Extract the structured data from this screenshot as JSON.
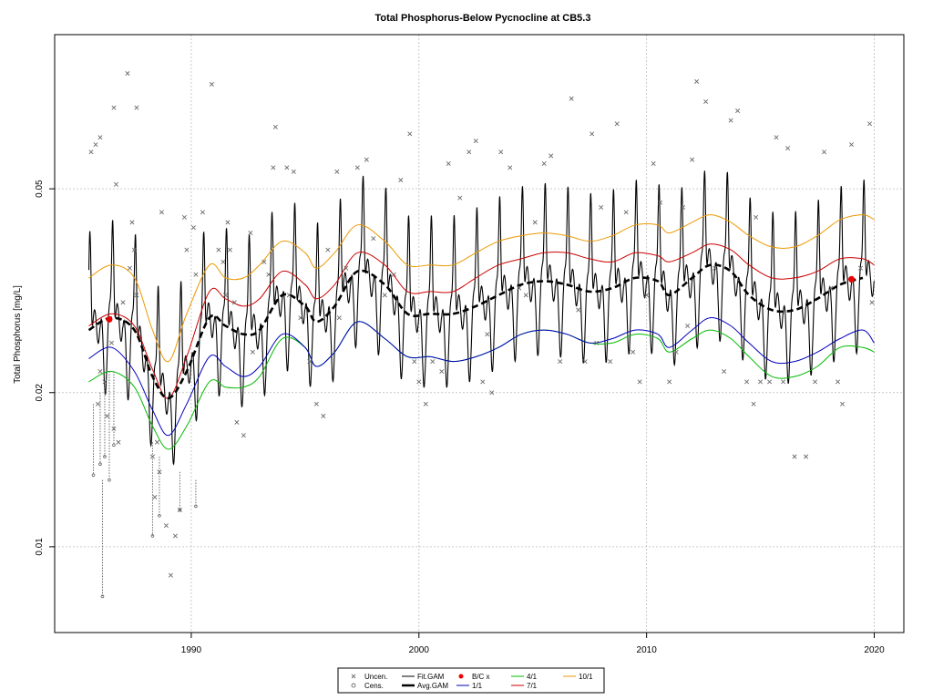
{
  "chart_data": {
    "type": "line",
    "title": "Total Phosphorus-Below Pycnocline at CB5.3",
    "xlabel": "",
    "ylabel": "Total Phosphorus [mg/L]",
    "x_scale": "linear (year)",
    "y_scale": "log",
    "xlim": [
      1984.0,
      2021.3
    ],
    "ylim": [
      0.0068,
      0.1
    ],
    "x_ticks": [
      1990,
      2000,
      2010,
      2020
    ],
    "y_ticks": [
      0.01,
      0.02,
      0.05
    ],
    "y_tick_labels": [
      "0.01",
      "0.02",
      "0.05"
    ],
    "grid": true,
    "legend_position": "bottom-center",
    "legend": [
      {
        "label": "Uncen.",
        "marker": "x"
      },
      {
        "label": "Cens.",
        "marker": "o"
      },
      {
        "label": "Fit.GAM",
        "line": "solid-thin"
      },
      {
        "label": "Avg.GAM",
        "line": "dashed-thick"
      },
      {
        "label": "B/C x",
        "marker": "dot"
      },
      {
        "label": "1/1",
        "line": "solid"
      },
      {
        "label": "4/1",
        "line": "solid"
      },
      {
        "label": "7/1",
        "line": "solid"
      },
      {
        "label": "10/1",
        "line": "solid"
      }
    ],
    "colors": {
      "uncensored": "#6b6b6b",
      "fit_gam": "#000000",
      "avg_gam": "#000000",
      "bc_x": "#ee0000",
      "jan1": "#0000bb",
      "apr1": "#00bb00",
      "jul1": "#cc0000",
      "oct1": "#ee9900",
      "grid": "#bbbbbb"
    },
    "x_range_data": [
      1985.5,
      2020.0
    ],
    "avg_gam": {
      "x": [
        1985.5,
        1986.5,
        1987.5,
        1988.3,
        1989.0,
        1989.8,
        1990.8,
        1991.5,
        1992.3,
        1993.0,
        1994.0,
        1995.0,
        1995.5,
        1996.3,
        1997.3,
        1998.5,
        1999.5,
        2000.5,
        2001.5,
        2002.5,
        2003.5,
        2004.5,
        2005.5,
        2006.5,
        2007.5,
        2008.5,
        2009.5,
        2010.5,
        2011.0,
        2012.0,
        2012.8,
        2013.7,
        2014.5,
        2015.5,
        2016.5,
        2017.5,
        2018.5,
        2019.5
      ],
      "y": [
        0.0265,
        0.028,
        0.0265,
        0.0215,
        0.0195,
        0.022,
        0.028,
        0.027,
        0.026,
        0.0265,
        0.031,
        0.0295,
        0.0275,
        0.0295,
        0.0345,
        0.0325,
        0.0285,
        0.0285,
        0.0285,
        0.0295,
        0.031,
        0.0325,
        0.033,
        0.0325,
        0.0315,
        0.032,
        0.0335,
        0.033,
        0.031,
        0.0335,
        0.0355,
        0.0345,
        0.031,
        0.029,
        0.029,
        0.0305,
        0.0325,
        0.0335
      ]
    },
    "series_1_1": {
      "x": [
        1985.5,
        1986.5,
        1987.5,
        1988.3,
        1989.0,
        1989.8,
        1990.8,
        1991.5,
        1992.3,
        1993.0,
        1994.0,
        1995.0,
        1995.5,
        1996.3,
        1997.3,
        1998.5,
        1999.5,
        2000.5,
        2001.5,
        2002.5,
        2003.5,
        2004.5,
        2005.5,
        2006.5,
        2007.5,
        2008.5,
        2009.5,
        2010.5,
        2011.0,
        2012.0,
        2012.8,
        2013.7,
        2014.5,
        2015.5,
        2016.5,
        2017.5,
        2018.5,
        2019.5,
        2020.0
      ],
      "y": [
        0.0233,
        0.0245,
        0.022,
        0.0185,
        0.0165,
        0.019,
        0.0235,
        0.0225,
        0.0215,
        0.0225,
        0.026,
        0.0245,
        0.0225,
        0.024,
        0.0275,
        0.0255,
        0.0235,
        0.0235,
        0.023,
        0.0235,
        0.0245,
        0.026,
        0.0265,
        0.026,
        0.025,
        0.0255,
        0.0265,
        0.026,
        0.0245,
        0.0265,
        0.028,
        0.027,
        0.025,
        0.023,
        0.023,
        0.024,
        0.0255,
        0.0265,
        0.025
      ]
    },
    "series_4_1": {
      "x": [
        1985.5,
        1986.5,
        1987.5,
        1988.3,
        1989.0,
        1989.8,
        1990.8,
        1991.5,
        1992.3,
        1993.0,
        1994.0,
        1995.0,
        1995.5,
        1996.3,
        1997.3,
        1998.5,
        1999.5,
        2000.5,
        2001.5,
        2002.5,
        2003.5,
        2004.5,
        2005.5,
        2006.5,
        2007.5,
        2008.5,
        2009.5,
        2010.5,
        2011.0,
        2012.0,
        2012.8,
        2013.7,
        2014.5,
        2015.5,
        2016.5,
        2017.5,
        2018.5,
        2019.5,
        2020.0
      ],
      "y": [
        0.021,
        0.022,
        0.0205,
        0.0172,
        0.0155,
        0.0172,
        0.021,
        0.0205,
        0.0205,
        0.0215,
        0.0255,
        0.0245,
        0.0225,
        0.024,
        0.0275,
        0.0255,
        0.0235,
        0.0235,
        0.023,
        0.0235,
        0.0245,
        0.026,
        0.0265,
        0.026,
        0.025,
        0.025,
        0.026,
        0.0255,
        0.024,
        0.0255,
        0.0265,
        0.0255,
        0.0235,
        0.0215,
        0.0215,
        0.0225,
        0.0245,
        0.0245,
        0.024
      ]
    },
    "series_7_1": {
      "x": [
        1985.5,
        1986.5,
        1987.5,
        1988.3,
        1989.0,
        1989.8,
        1990.8,
        1991.5,
        1992.3,
        1993.0,
        1994.0,
        1995.0,
        1995.5,
        1996.3,
        1997.3,
        1998.5,
        1999.5,
        2000.5,
        2001.5,
        2002.5,
        2003.5,
        2004.5,
        2005.5,
        2006.5,
        2007.5,
        2008.5,
        2009.5,
        2010.5,
        2011.0,
        2012.0,
        2012.8,
        2013.7,
        2014.5,
        2015.5,
        2016.5,
        2017.5,
        2018.5,
        2019.5,
        2020.0
      ],
      "y": [
        0.027,
        0.0285,
        0.027,
        0.0222,
        0.0195,
        0.0235,
        0.0315,
        0.0305,
        0.0295,
        0.0305,
        0.0345,
        0.0325,
        0.0305,
        0.0325,
        0.0375,
        0.0355,
        0.0315,
        0.0315,
        0.0315,
        0.0335,
        0.0355,
        0.0365,
        0.0375,
        0.0375,
        0.0365,
        0.036,
        0.0375,
        0.037,
        0.036,
        0.0375,
        0.039,
        0.038,
        0.0355,
        0.0335,
        0.0335,
        0.0345,
        0.0365,
        0.0365,
        0.0355
      ]
    },
    "series_10_1": {
      "x": [
        1985.5,
        1986.5,
        1987.5,
        1988.3,
        1989.0,
        1989.8,
        1990.8,
        1991.5,
        1992.3,
        1993.0,
        1994.0,
        1995.0,
        1995.5,
        1996.3,
        1997.3,
        1998.5,
        1999.5,
        2000.5,
        2001.5,
        2002.5,
        2003.5,
        2004.5,
        2005.5,
        2006.5,
        2007.5,
        2008.5,
        2009.5,
        2010.5,
        2011.0,
        2012.0,
        2012.8,
        2013.7,
        2014.5,
        2015.5,
        2016.5,
        2017.5,
        2018.5,
        2019.5,
        2020.0
      ],
      "y": [
        0.0335,
        0.0355,
        0.0335,
        0.0265,
        0.023,
        0.0285,
        0.0355,
        0.0335,
        0.0335,
        0.0355,
        0.0395,
        0.0375,
        0.035,
        0.0375,
        0.0425,
        0.0395,
        0.0355,
        0.0355,
        0.0355,
        0.0375,
        0.0395,
        0.0405,
        0.041,
        0.0405,
        0.0395,
        0.0405,
        0.0425,
        0.0425,
        0.041,
        0.043,
        0.0445,
        0.043,
        0.0405,
        0.0385,
        0.0385,
        0.0405,
        0.0435,
        0.0445,
        0.0435
      ]
    },
    "bc_points": [
      {
        "x": 1986.4,
        "y": 0.0278
      },
      {
        "x": 2019.0,
        "y": 0.0333
      }
    ],
    "uncensored_points": [
      [
        1985.6,
        0.059
      ],
      [
        1985.8,
        0.061
      ],
      [
        1986.0,
        0.063
      ],
      [
        1986.6,
        0.072
      ],
      [
        1986.7,
        0.051
      ],
      [
        1987.2,
        0.084
      ],
      [
        1987.6,
        0.072
      ],
      [
        1987.5,
        0.038
      ],
      [
        1987.4,
        0.043
      ],
      [
        1987.0,
        0.03
      ],
      [
        1986.5,
        0.025
      ],
      [
        1986.2,
        0.021
      ],
      [
        1986.0,
        0.022
      ],
      [
        1985.9,
        0.019
      ],
      [
        1986.3,
        0.018
      ],
      [
        1986.6,
        0.017
      ],
      [
        1986.8,
        0.016
      ],
      [
        1987.3,
        0.035
      ],
      [
        1987.6,
        0.031
      ],
      [
        1988.7,
        0.045
      ],
      [
        1988.5,
        0.016
      ],
      [
        1988.3,
        0.015
      ],
      [
        1988.6,
        0.014
      ],
      [
        1988.4,
        0.0125
      ],
      [
        1988.9,
        0.011
      ],
      [
        1989.3,
        0.0105
      ],
      [
        1989.5,
        0.0118
      ],
      [
        1989.1,
        0.0088
      ],
      [
        1989.7,
        0.044
      ],
      [
        1989.8,
        0.038
      ],
      [
        1990.1,
        0.042
      ],
      [
        1990.2,
        0.034
      ],
      [
        1990.5,
        0.045
      ],
      [
        1990.9,
        0.08
      ],
      [
        1991.2,
        0.038
      ],
      [
        1991.4,
        0.036
      ],
      [
        1991.6,
        0.043
      ],
      [
        1991.9,
        0.03
      ],
      [
        1992.0,
        0.0175
      ],
      [
        1992.3,
        0.0165
      ],
      [
        1991.5,
        0.031
      ],
      [
        1991.7,
        0.038
      ],
      [
        1992.6,
        0.041
      ],
      [
        1993.2,
        0.036
      ],
      [
        1993.4,
        0.034
      ],
      [
        1993.6,
        0.055
      ],
      [
        1993.7,
        0.066
      ],
      [
        1994.2,
        0.055
      ],
      [
        1994.5,
        0.054
      ],
      [
        1994.3,
        0.031
      ],
      [
        1994.8,
        0.028
      ],
      [
        1995.2,
        0.023
      ],
      [
        1995.5,
        0.019
      ],
      [
        1995.8,
        0.018
      ],
      [
        1996.0,
        0.038
      ],
      [
        1996.4,
        0.054
      ],
      [
        1996.8,
        0.035
      ],
      [
        1997.3,
        0.055
      ],
      [
        1997.7,
        0.057
      ],
      [
        1998.0,
        0.04
      ],
      [
        1998.5,
        0.031
      ],
      [
        1998.9,
        0.034
      ],
      [
        1999.2,
        0.052
      ],
      [
        1999.6,
        0.064
      ],
      [
        1999.8,
        0.023
      ],
      [
        2000.0,
        0.021
      ],
      [
        2000.3,
        0.019
      ],
      [
        2000.6,
        0.023
      ],
      [
        2001.0,
        0.022
      ],
      [
        2001.3,
        0.056
      ],
      [
        2001.8,
        0.048
      ],
      [
        2002.2,
        0.059
      ],
      [
        2002.5,
        0.062
      ],
      [
        2002.8,
        0.021
      ],
      [
        2003.2,
        0.02
      ],
      [
        2003.6,
        0.059
      ],
      [
        2004.0,
        0.055
      ],
      [
        2004.4,
        0.032
      ],
      [
        2004.7,
        0.031
      ],
      [
        2005.1,
        0.043
      ],
      [
        2005.5,
        0.056
      ],
      [
        2005.8,
        0.058
      ],
      [
        2006.2,
        0.023
      ],
      [
        2006.7,
        0.075
      ],
      [
        2007.0,
        0.029
      ],
      [
        2007.3,
        0.023
      ],
      [
        2007.6,
        0.064
      ],
      [
        2008.0,
        0.046
      ],
      [
        2008.4,
        0.023
      ],
      [
        2008.7,
        0.067
      ],
      [
        2009.1,
        0.045
      ],
      [
        2009.4,
        0.024
      ],
      [
        2009.7,
        0.021
      ],
      [
        2010.0,
        0.031
      ],
      [
        2010.3,
        0.056
      ],
      [
        2010.6,
        0.047
      ],
      [
        2011.0,
        0.021
      ],
      [
        2011.3,
        0.024
      ],
      [
        2011.6,
        0.046
      ],
      [
        2012.0,
        0.057
      ],
      [
        2012.2,
        0.081
      ],
      [
        2012.6,
        0.074
      ],
      [
        2013.0,
        0.035
      ],
      [
        2013.4,
        0.022
      ],
      [
        2013.7,
        0.068
      ],
      [
        2014.0,
        0.071
      ],
      [
        2014.4,
        0.021
      ],
      [
        2014.7,
        0.019
      ],
      [
        2015.0,
        0.021
      ],
      [
        2015.4,
        0.021
      ],
      [
        2015.7,
        0.063
      ],
      [
        2016.0,
        0.021
      ],
      [
        2016.5,
        0.015
      ],
      [
        2017.0,
        0.015
      ],
      [
        2017.4,
        0.021
      ],
      [
        2017.8,
        0.059
      ],
      [
        2018.1,
        0.032
      ],
      [
        2018.4,
        0.021
      ],
      [
        2018.6,
        0.019
      ],
      [
        2019.0,
        0.061
      ],
      [
        2019.4,
        0.035
      ],
      [
        2019.8,
        0.067
      ],
      [
        2019.9,
        0.03
      ],
      [
        2016.2,
        0.06
      ],
      [
        2014.8,
        0.044
      ],
      [
        2011.8,
        0.027
      ],
      [
        2007.8,
        0.025
      ],
      [
        2003.0,
        0.026
      ],
      [
        1996.5,
        0.028
      ],
      [
        1992.7,
        0.024
      ]
    ],
    "censored_points": [
      {
        "x": 1985.7,
        "y_top": 0.019,
        "y_bottom": 0.0138
      },
      {
        "x": 1986.0,
        "y_top": 0.02,
        "y_bottom": 0.0145
      },
      {
        "x": 1986.2,
        "y_top": 0.021,
        "y_bottom": 0.015
      },
      {
        "x": 1986.4,
        "y_top": 0.022,
        "y_bottom": 0.0135
      },
      {
        "x": 1986.6,
        "y_top": 0.022,
        "y_bottom": 0.0158
      },
      {
        "x": 1986.1,
        "y_top": 0.0135,
        "y_bottom": 0.008
      },
      {
        "x": 1988.3,
        "y_top": 0.016,
        "y_bottom": 0.0105
      },
      {
        "x": 1988.6,
        "y_top": 0.015,
        "y_bottom": 0.0115
      },
      {
        "x": 1989.5,
        "y_top": 0.014,
        "y_bottom": 0.0118
      },
      {
        "x": 1990.2,
        "y_top": 0.0135,
        "y_bottom": 0.012
      }
    ]
  }
}
